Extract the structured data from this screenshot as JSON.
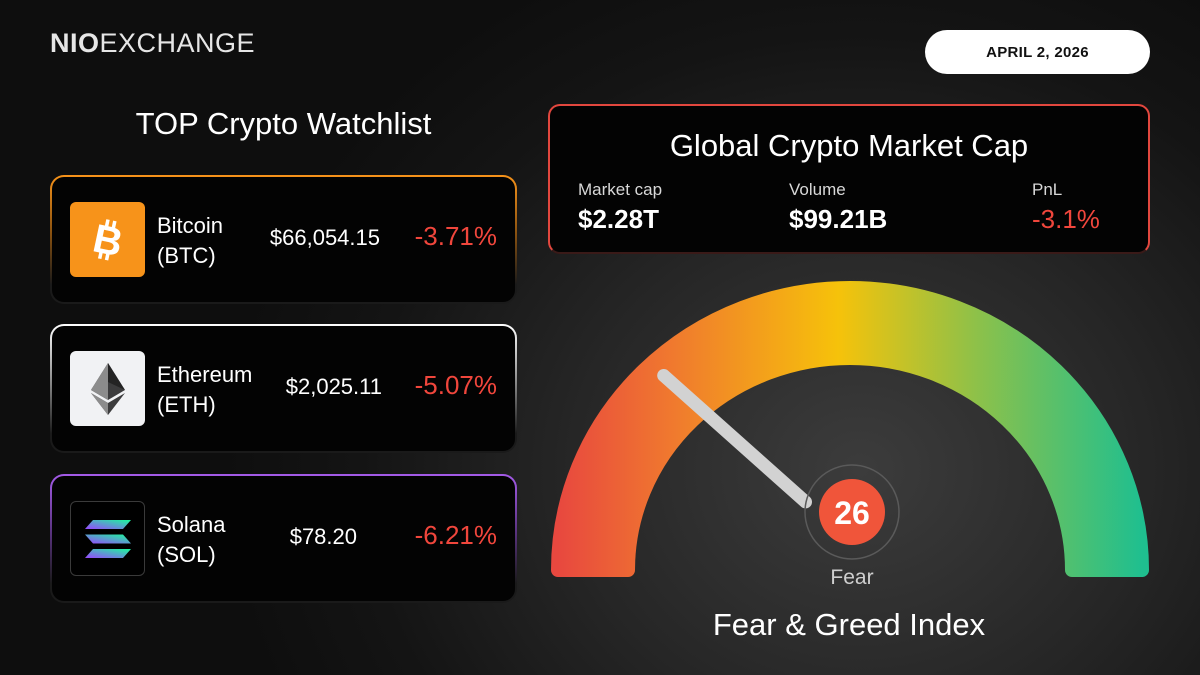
{
  "brand": {
    "logo_bold": "NIO",
    "logo_light": "EXCHANGE"
  },
  "date": "APRIL 2, 2026",
  "watchlist": {
    "title": "TOP Crypto Watchlist",
    "coins": [
      {
        "name": "Bitcoin",
        "ticker": "(BTC)",
        "price": "$66,054.15",
        "change": "-3.71%",
        "icon": "bitcoin-icon",
        "color": "#f7931a"
      },
      {
        "name": "Ethereum",
        "ticker": "(ETH)",
        "price": "$2,025.11",
        "change": "-5.07%",
        "icon": "ethereum-icon",
        "color": "#ffffff"
      },
      {
        "name": "Solana",
        "ticker": "(SOL)",
        "price": "$78.20",
        "change": "-6.21%",
        "icon": "solana-icon",
        "color": "#a45be8"
      }
    ]
  },
  "market": {
    "title": "Global Crypto Market Cap",
    "market_cap_label": "Market cap",
    "market_cap_value": "$2.28T",
    "volume_label": "Volume",
    "volume_value": "$99.21B",
    "pnl_label": "PnL",
    "pnl_value": "-3.1%"
  },
  "fear_greed": {
    "title": "Fear & Greed Index",
    "value": 26,
    "value_text": "26",
    "sentiment": "Fear",
    "min": 0,
    "max": 100,
    "colors": {
      "fear": "#e8483f",
      "neutral": "#f6c20a",
      "greed": "#1fbf8f",
      "badge": "#f0553a"
    }
  },
  "colors": {
    "negative": "#f0463c",
    "market_border": "#e2473e"
  }
}
